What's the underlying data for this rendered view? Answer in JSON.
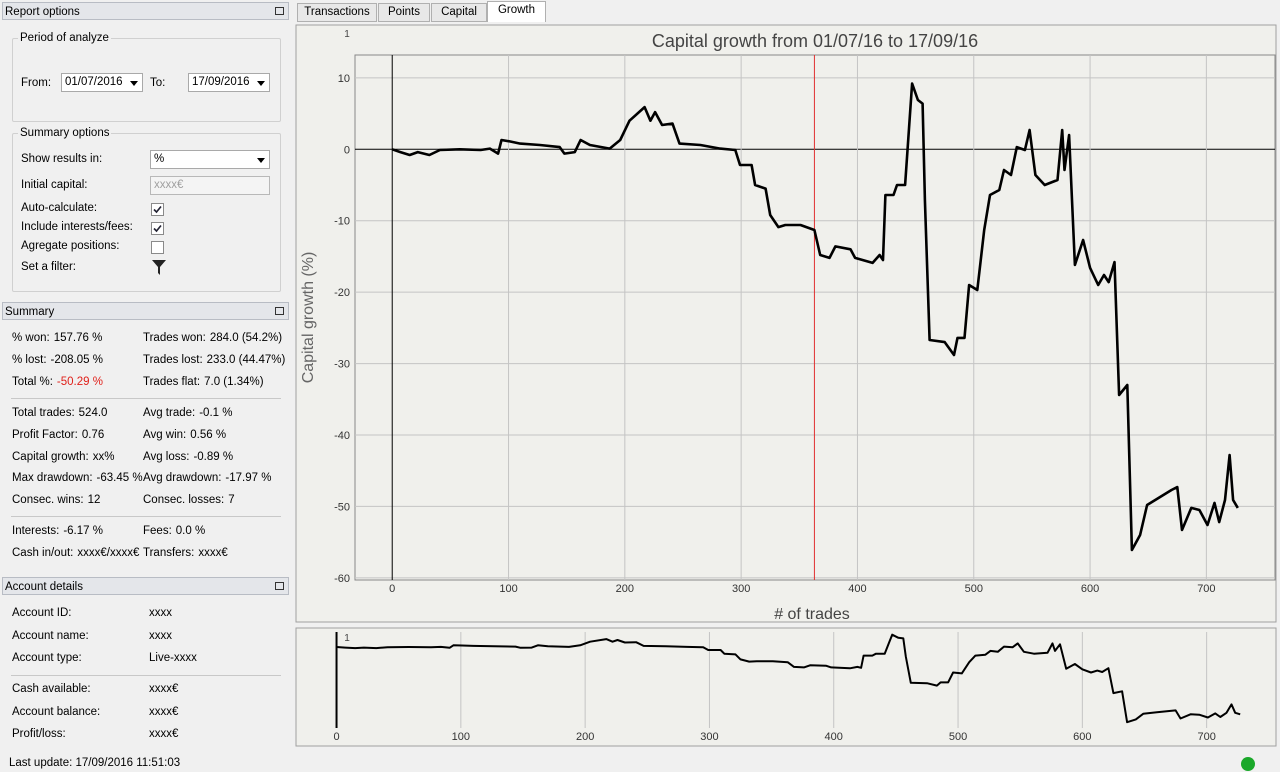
{
  "tabs": [
    "Transactions",
    "Points",
    "Capital",
    "Growth"
  ],
  "active_tab": 3,
  "report_options": {
    "title": "Report options",
    "period_title": "Period of analyze",
    "from_label": "From:",
    "from_value": "01/07/2016",
    "to_label": "To:",
    "to_value": "17/09/2016",
    "summary_options_title": "Summary options",
    "show_results_label": "Show results in:",
    "show_results_value": "%",
    "initial_capital_label": "Initial capital:",
    "initial_capital_placeholder": "xxxx€",
    "checkboxes": [
      {
        "label": "Auto-calculate:",
        "checked": true
      },
      {
        "label": "Include interests/fees:",
        "checked": true
      },
      {
        "label": "Agregate positions:",
        "checked": false
      }
    ],
    "filter_label": "Set a filter:"
  },
  "summary": {
    "title": "Summary",
    "groups": [
      [
        [
          {
            "label": "% won:",
            "value": "157.76 %"
          },
          {
            "label": "Trades won:",
            "value": "284.0 (54.2%)"
          }
        ],
        [
          {
            "label": "% lost:",
            "value": "-208.05 %"
          },
          {
            "label": "Trades lost:",
            "value": "233.0 (44.47%)"
          }
        ],
        [
          {
            "label": "Total %:",
            "value": "-50.29 %",
            "color": "#e0201a"
          },
          {
            "label": "Trades flat:",
            "value": "7.0 (1.34%)"
          }
        ]
      ],
      [
        [
          {
            "label": "Total trades:",
            "value": "524.0"
          },
          {
            "label": "Avg trade:",
            "value": "-0.1 %"
          }
        ],
        [
          {
            "label": "Profit Factor:",
            "value": "0.76"
          },
          {
            "label": "Avg win:",
            "value": "0.56 %"
          }
        ],
        [
          {
            "label": "Capital growth:",
            "value": "xx%"
          },
          {
            "label": "Avg loss:",
            "value": "-0.89 %"
          }
        ],
        [
          {
            "label": "Max drawdown:",
            "value": "-63.45 %"
          },
          {
            "label": "Avg drawdown:",
            "value": "-17.97 %"
          }
        ],
        [
          {
            "label": "Consec. wins:",
            "value": "12"
          },
          {
            "label": "Consec. losses:",
            "value": "7"
          }
        ]
      ],
      [
        [
          {
            "label": "Interests:",
            "value": "-6.17 %"
          },
          {
            "label": "Fees:",
            "value": "0.0 %"
          }
        ],
        [
          {
            "label": "Cash in/out:",
            "value": "xxxx€/xxxx€"
          },
          {
            "label": "Transfers:",
            "value": "xxxx€"
          }
        ]
      ]
    ]
  },
  "account_details": {
    "title": "Account details",
    "groups": [
      [
        {
          "label": "Account ID:",
          "value": "xxxx"
        },
        {
          "label": "Account name:",
          "value": "xxxx"
        },
        {
          "label": "Account type:",
          "value": "Live-xxxx"
        }
      ],
      [
        {
          "label": "Cash available:",
          "value": "xxxx€"
        },
        {
          "label": "Account balance:",
          "value": "xxxx€"
        },
        {
          "label": "Profit/loss:",
          "value": "xxxx€"
        }
      ]
    ]
  },
  "last_update": "Last update: 17/09/2016 11:51:03",
  "chart_data": [
    {
      "type": "line",
      "title": "Capital growth from 01/07/16 to 17/09/16",
      "xlabel": "# of trades",
      "ylabel": "Capital growth (%)",
      "corner_label": "1",
      "x": [
        0,
        7,
        15,
        22,
        32,
        41,
        58,
        76,
        84,
        91,
        94,
        101,
        110,
        127,
        144,
        148,
        157,
        162,
        170,
        187,
        196,
        204,
        217,
        222,
        226,
        232,
        241,
        247,
        265,
        282,
        295,
        299,
        309,
        312,
        321,
        325,
        332,
        338,
        351,
        363,
        368,
        376,
        381,
        394,
        398,
        413,
        419,
        422,
        424,
        431,
        434,
        441,
        447,
        452,
        456,
        458,
        462,
        475,
        483,
        486,
        492,
        496,
        503,
        509,
        514,
        522,
        526,
        532,
        537,
        544,
        548,
        553,
        561,
        572,
        576,
        578,
        582,
        587,
        594,
        600,
        607,
        612,
        616,
        621,
        625,
        632,
        636,
        643,
        649,
        660,
        670,
        675,
        679,
        687,
        694,
        701,
        707,
        711,
        716,
        720,
        723,
        727
      ],
      "values": [
        0,
        -0.4,
        -0.8,
        -0.4,
        -0.8,
        -0.1,
        0,
        -0.1,
        0.1,
        -0.6,
        1.3,
        1.1,
        0.8,
        0.6,
        0.3,
        -0.6,
        -0.4,
        1.3,
        0.6,
        0.1,
        1.3,
        4,
        5.9,
        4,
        5.2,
        3.4,
        3.6,
        0.8,
        0.6,
        0.1,
        -0.1,
        -2.2,
        -2.2,
        -5,
        -5.5,
        -9.2,
        -10.9,
        -10.6,
        -10.6,
        -11.3,
        -14.8,
        -15.2,
        -13.6,
        -14,
        -15.2,
        -15.9,
        -14.8,
        -15.5,
        -6.4,
        -6.4,
        -5,
        -5,
        9.2,
        6.9,
        6.4,
        -7.1,
        -26.7,
        -27,
        -28.8,
        -26.4,
        -26.4,
        -19,
        -19.7,
        -11.3,
        -6.4,
        -5.7,
        -2.9,
        -3.6,
        0.3,
        -0.1,
        2.7,
        -3.6,
        -5,
        -4.3,
        2.7,
        -2.9,
        2,
        -16.2,
        -12.7,
        -16.6,
        -19,
        -17.6,
        -18.6,
        -15.8,
        -34.4,
        -33,
        -56.1,
        -54,
        -49.8,
        -48.7,
        -47.7,
        -47.3,
        -53.3,
        -50.2,
        -50.5,
        -52.6,
        -49.5,
        -52.2,
        -49.1,
        -42.8,
        -49.1,
        -50.2
      ],
      "color": "#000000",
      "marker_x": 363,
      "marker_color": "#e03030",
      "xlim": [
        -32,
        759
      ],
      "xticks": [
        0,
        100,
        200,
        300,
        400,
        500,
        600,
        700
      ],
      "ylim": [
        -60.3,
        13.2
      ],
      "yticks": [
        10,
        0,
        -10,
        -20,
        -30,
        -40,
        -50,
        -60
      ],
      "grid": true
    },
    {
      "type": "line",
      "corner_label": "1",
      "xlim": [
        -31,
        755
      ],
      "xticks": [
        0,
        100,
        200,
        300,
        400,
        500,
        600,
        700
      ],
      "ylim": [
        -60.4,
        11.2
      ],
      "grid": true
    }
  ]
}
